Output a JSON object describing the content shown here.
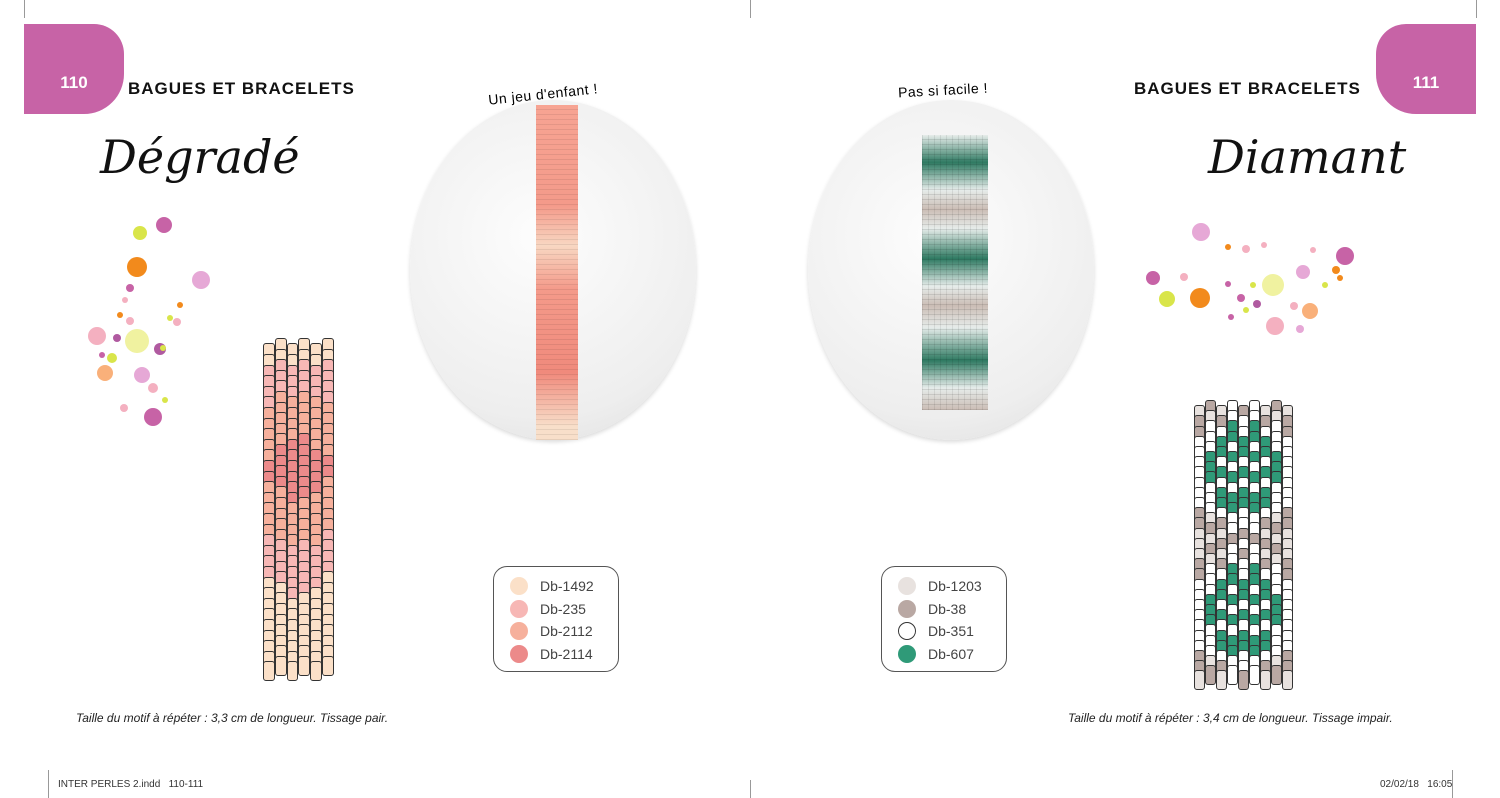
{
  "left_page": {
    "page_number": "110",
    "section": "BAGUES ET BRACELETS",
    "title": "Dégradé",
    "difficulty": "Un jeu d'enfant !",
    "legend": [
      {
        "code": "Db-1492",
        "color": "#fbe0c8"
      },
      {
        "code": "Db-235",
        "color": "#f7b7b5"
      },
      {
        "code": "Db-2112",
        "color": "#f6b09c"
      },
      {
        "code": "Db-2114",
        "color": "#ec8a8a"
      }
    ],
    "caption": "Taille du motif à répéter : 3,3 cm de longueur. Tissage pair.",
    "pattern": [
      "000000",
      "000000",
      "111111",
      "111111",
      "111111",
      "122221",
      "222222",
      "222222",
      "222222",
      "223322",
      "233332",
      "333333",
      "333333",
      "233332",
      "223322",
      "222222",
      "222222",
      "222222",
      "122221",
      "111111",
      "111111",
      "111111",
      "011110",
      "001100",
      "000000",
      "000000",
      "000000",
      "000000",
      "000000",
      "000000",
      "000000"
    ]
  },
  "right_page": {
    "page_number": "111",
    "section": "BAGUES ET BRACELETS",
    "title": "Diamant",
    "difficulty": "Pas si facile !",
    "legend": [
      {
        "code": "Db-1203",
        "color": "#e8e2df"
      },
      {
        "code": "Db-38",
        "color": "#b9a8a3"
      },
      {
        "code": "Db-351",
        "color": "#ffffff"
      },
      {
        "code": "Db-607",
        "color": "#2f9a78"
      }
    ],
    "caption": "Taille du motif à répéter : 3,4 cm de longueur. Tissage impair.",
    "pattern": [
      "010212010",
      "101222101",
      "122323221",
      "223333322",
      "223232322",
      "232323232",
      "233232332",
      "232323232",
      "223232322",
      "223333322",
      "122323221",
      "101222101",
      "010212010",
      "001121100",
      "010212010",
      "101222101",
      "122323221",
      "223333322",
      "223232322",
      "232323232",
      "233232332",
      "232323232",
      "223232322",
      "223333322",
      "122323221",
      "101222101",
      "010212010"
    ]
  },
  "accent_color": "#c763a6",
  "footer": {
    "file": "INTER PERLES 2.indd   110-111",
    "datetime": "02/02/18   16:05"
  }
}
